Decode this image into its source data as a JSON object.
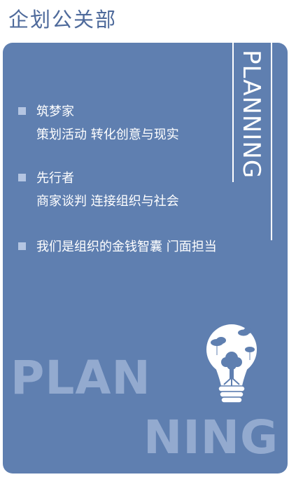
{
  "page": {
    "title": "企划公关部"
  },
  "card": {
    "vertical_word": "PLANNING",
    "items": [
      {
        "head": "筑梦家",
        "sub": "策划活动  转化创意与现实"
      },
      {
        "head": "先行者",
        "sub": "商家谈判  连接组织与社会"
      },
      {
        "head": "我们是组织的金钱智囊  门面担当",
        "sub": ""
      }
    ],
    "big_words": [
      "PLAN",
      "NING"
    ]
  },
  "colors": {
    "title": "#4e6a9b",
    "card": "#5f7fb0",
    "bullet": "#b4c5e2",
    "big_word": "#9db2d5"
  },
  "icons": {
    "bullet": "square-bullet-icon",
    "illustration": "lightbulb-tree-icon"
  }
}
